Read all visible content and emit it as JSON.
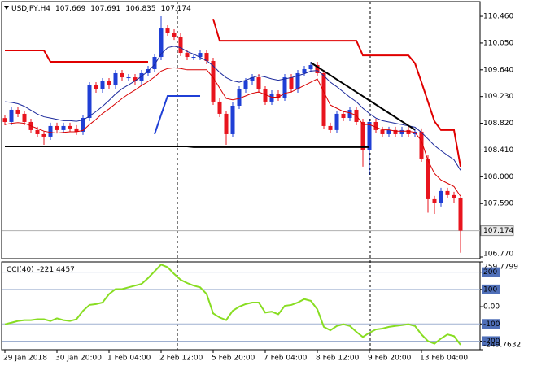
{
  "chart_data": [
    {
      "type": "candlestick",
      "title": "USDJPY,H4",
      "categories": [
        "29 Jan 2018",
        null,
        null,
        null,
        null,
        null,
        null,
        null,
        "30 Jan 20:00",
        null,
        null,
        null,
        null,
        null,
        null,
        null,
        "1 Feb 04:00",
        null,
        null,
        null,
        null,
        null,
        null,
        null,
        "2 Feb 12:00",
        null,
        null,
        null,
        null,
        null,
        null,
        null,
        "5 Feb 20:00",
        null,
        null,
        null,
        null,
        null,
        null,
        null,
        "7 Feb 04:00",
        null,
        null,
        null,
        null,
        null,
        null,
        null,
        "8 Feb 12:00",
        null,
        null,
        null,
        null,
        null,
        null,
        null,
        "9 Feb 20:00",
        null,
        null,
        null,
        null,
        null,
        null,
        null,
        "13 Feb 04:00",
        null,
        null,
        null,
        null,
        null,
        null
      ],
      "open": [
        108.9,
        108.84,
        109.027,
        108.965,
        108.84,
        108.716,
        108.653,
        108.616,
        108.778,
        108.716,
        108.778,
        108.741,
        108.691,
        108.902,
        109.401,
        109.339,
        109.463,
        109.401,
        109.588,
        109.525,
        109.525,
        109.463,
        109.588,
        109.65,
        109.837,
        110.273,
        110.211,
        110.148,
        109.899,
        109.837,
        109.837,
        109.899,
        109.775,
        109.152,
        108.965,
        108.653,
        109.089,
        109.339,
        109.463,
        109.525,
        109.339,
        109.152,
        109.276,
        109.214,
        109.525,
        109.339,
        109.588,
        109.65,
        109.712,
        109.588,
        108.778,
        108.716,
        108.965,
        108.902,
        109.027,
        108.84,
        108.404,
        108.84,
        108.716,
        108.653,
        108.716,
        108.653,
        108.716,
        108.653,
        108.691,
        108.279,
        107.656,
        107.594,
        107.781,
        107.719,
        107.669
      ],
      "high": [
        108.95,
        109.077,
        109.077,
        109.015,
        108.89,
        108.766,
        108.703,
        108.828,
        108.828,
        108.828,
        108.828,
        108.791,
        108.952,
        109.451,
        109.451,
        109.513,
        109.513,
        109.638,
        109.638,
        109.575,
        109.575,
        109.638,
        109.7,
        109.887,
        110.46,
        110.323,
        110.261,
        110.198,
        109.949,
        109.887,
        109.949,
        109.949,
        109.825,
        109.202,
        109.015,
        109.139,
        109.389,
        109.513,
        109.575,
        109.575,
        109.389,
        109.326,
        109.326,
        109.575,
        109.575,
        109.638,
        109.7,
        109.762,
        109.762,
        109.638,
        108.828,
        109.015,
        109.015,
        109.077,
        109.077,
        108.89,
        108.89,
        108.89,
        108.766,
        108.766,
        108.766,
        108.766,
        108.766,
        108.741,
        108.741,
        108.329,
        107.706,
        107.831,
        107.831,
        107.769,
        107.691
      ],
      "low": [
        108.79,
        108.79,
        108.915,
        108.79,
        108.666,
        108.603,
        108.49,
        108.566,
        108.666,
        108.666,
        108.691,
        108.641,
        108.641,
        108.852,
        109.289,
        109.289,
        109.351,
        109.351,
        109.475,
        109.475,
        109.413,
        109.413,
        109.538,
        109.6,
        109.787,
        110.161,
        110.098,
        109.849,
        109.787,
        109.787,
        109.787,
        109.725,
        109.102,
        108.915,
        108.49,
        108.603,
        109.039,
        109.289,
        109.413,
        109.289,
        109.102,
        109.102,
        109.164,
        109.164,
        109.289,
        109.289,
        109.538,
        109.6,
        109.538,
        108.728,
        108.666,
        108.666,
        108.852,
        108.852,
        108.79,
        108.155,
        108.03,
        108.666,
        108.603,
        108.603,
        108.603,
        108.603,
        108.603,
        108.603,
        108.229,
        107.45,
        107.43,
        107.544,
        107.669,
        107.606,
        106.835
      ],
      "close": [
        108.84,
        109.027,
        108.965,
        108.84,
        108.716,
        108.653,
        108.616,
        108.778,
        108.716,
        108.778,
        108.741,
        108.691,
        108.902,
        109.401,
        109.339,
        109.463,
        109.401,
        109.588,
        109.525,
        109.525,
        109.463,
        109.588,
        109.65,
        109.837,
        110.273,
        110.211,
        110.148,
        109.899,
        109.837,
        109.837,
        109.899,
        109.775,
        109.152,
        108.965,
        108.653,
        109.089,
        109.339,
        109.463,
        109.525,
        109.339,
        109.152,
        109.276,
        109.214,
        109.525,
        109.339,
        109.588,
        109.65,
        109.712,
        109.588,
        108.778,
        108.716,
        108.965,
        108.902,
        109.027,
        108.84,
        108.404,
        108.84,
        108.716,
        108.653,
        108.716,
        108.653,
        108.716,
        108.653,
        108.691,
        108.279,
        107.656,
        107.594,
        107.781,
        107.719,
        107.669,
        107.174
      ],
      "up_color": "#1f3fd6",
      "down_color": "#e8141e",
      "series": [
        {
          "color": "#1c2a9c",
          "values": [
            109.15,
            109.14,
            109.12,
            109.08,
            109.02,
            108.96,
            108.92,
            108.9,
            108.88,
            108.86,
            108.86,
            108.85,
            108.87,
            108.93,
            109.0,
            109.08,
            109.17,
            109.27,
            109.35,
            109.41,
            109.47,
            109.54,
            109.62,
            109.72,
            109.88,
            109.98,
            110.0,
            109.98,
            109.92,
            109.88,
            109.83,
            109.78,
            109.7,
            109.6,
            109.52,
            109.47,
            109.45,
            109.48,
            109.52,
            109.55,
            109.53,
            109.5,
            109.48,
            109.5,
            109.52,
            109.55,
            109.58,
            109.62,
            109.63,
            109.55,
            109.45,
            109.38,
            109.3,
            109.22,
            109.15,
            109.05,
            108.97,
            108.9,
            108.86,
            108.84,
            108.82,
            108.8,
            108.78,
            108.76,
            108.68,
            108.58,
            108.48,
            108.4,
            108.33,
            108.26,
            108.1
          ]
        },
        {
          "color": "#d80000",
          "values": [
            108.8,
            108.82,
            108.83,
            108.82,
            108.78,
            108.74,
            108.7,
            108.68,
            108.67,
            108.68,
            108.69,
            108.69,
            108.71,
            108.8,
            108.88,
            108.97,
            109.04,
            109.12,
            109.2,
            109.27,
            109.33,
            109.4,
            109.46,
            109.53,
            109.62,
            109.66,
            109.67,
            109.66,
            109.64,
            109.64,
            109.64,
            109.64,
            109.52,
            109.36,
            109.2,
            109.18,
            109.2,
            109.24,
            109.28,
            109.3,
            109.26,
            109.22,
            109.22,
            109.28,
            109.3,
            109.35,
            109.4,
            109.45,
            109.5,
            109.3,
            109.1,
            109.05,
            109.0,
            108.98,
            108.94,
            108.8,
            108.8,
            108.76,
            108.72,
            108.72,
            108.7,
            108.7,
            108.7,
            108.68,
            108.55,
            108.25,
            108.05,
            107.95,
            107.9,
            107.85,
            107.7
          ]
        },
        {
          "color": "#e00000",
          "width": 2,
          "values": [
            109.937,
            109.937,
            109.937,
            109.937,
            109.937,
            109.937,
            109.937,
            109.762,
            109.762,
            109.762,
            109.762,
            109.762,
            109.762,
            109.762,
            109.762,
            109.762,
            109.762,
            109.762,
            109.762,
            109.762,
            109.762,
            109.762,
            109.762,
            null,
            null,
            null,
            null,
            null,
            null,
            null,
            null,
            null,
            110.42,
            110.085,
            110.085,
            110.085,
            110.085,
            110.085,
            110.085,
            110.085,
            110.085,
            110.085,
            110.085,
            110.085,
            110.085,
            110.085,
            110.085,
            110.085,
            110.085,
            110.085,
            110.085,
            110.085,
            110.085,
            110.085,
            110.085,
            109.86,
            109.86,
            109.86,
            109.86,
            109.86,
            109.86,
            109.86,
            109.86,
            109.74,
            109.45,
            109.15,
            108.85,
            108.716,
            108.716,
            108.716,
            108.155
          ]
        },
        {
          "color": "#1f3fd6",
          "width": 2,
          "values": [
            null,
            null,
            null,
            null,
            null,
            null,
            null,
            null,
            null,
            null,
            null,
            null,
            null,
            null,
            null,
            null,
            null,
            null,
            null,
            null,
            null,
            null,
            null,
            108.653,
            108.95,
            109.239,
            109.239,
            109.239,
            109.239,
            109.239,
            109.239,
            null,
            null,
            null,
            null,
            null,
            null,
            null,
            null,
            null,
            null,
            null,
            null,
            null,
            null,
            null,
            null,
            null,
            null,
            null,
            null,
            null,
            null,
            null,
            null,
            null,
            null,
            null,
            null,
            null,
            null,
            null,
            null,
            null,
            null,
            null,
            null,
            null,
            null,
            null,
            null
          ]
        },
        {
          "color": "#000000",
          "width": 2,
          "values": [
            108.466,
            108.466,
            108.466,
            108.466,
            108.466,
            108.466,
            108.466,
            108.466,
            108.466,
            108.466,
            108.466,
            108.466,
            108.466,
            108.466,
            108.466,
            108.466,
            108.466,
            108.466,
            108.466,
            108.466,
            108.466,
            108.466,
            108.466,
            108.466,
            108.466,
            108.466,
            108.466,
            108.466,
            108.466,
            108.454,
            108.454,
            108.454,
            108.454,
            108.454,
            108.454,
            108.454,
            108.454,
            108.454,
            108.454,
            108.454,
            108.454,
            108.454,
            108.454,
            108.454,
            108.454,
            108.454,
            108.454,
            108.454,
            108.454,
            108.454,
            108.454,
            108.454,
            108.454,
            108.454,
            108.454,
            108.454,
            108.454,
            null,
            null,
            null,
            null,
            null,
            null,
            null,
            null,
            null,
            null,
            null,
            null,
            null,
            null
          ]
        },
        {
          "color": "#000000",
          "width": 2,
          "values": [
            null,
            null,
            null,
            null,
            null,
            null,
            null,
            null,
            null,
            null,
            null,
            null,
            null,
            null,
            null,
            null,
            null,
            null,
            null,
            null,
            null,
            null,
            null,
            null,
            null,
            null,
            null,
            null,
            null,
            null,
            null,
            null,
            null,
            null,
            null,
            null,
            null,
            null,
            null,
            null,
            null,
            null,
            null,
            null,
            null,
            null,
            null,
            109.75,
            109.686,
            109.621,
            109.557,
            109.492,
            109.428,
            109.364,
            109.299,
            109.235,
            109.17,
            109.106,
            109.041,
            108.977,
            108.913,
            108.848,
            108.784,
            108.72,
            null,
            null,
            null,
            null,
            null,
            null,
            null
          ]
        }
      ],
      "ylim": [
        106.745,
        110.685
      ],
      "yticks": [
        {
          "value": 110.46,
          "label": "110.460"
        },
        {
          "value": 110.05,
          "label": "110.050"
        },
        {
          "value": 109.64,
          "label": "109.640"
        },
        {
          "value": 109.23,
          "label": "109.230"
        },
        {
          "value": 108.82,
          "label": "108.820"
        },
        {
          "value": 108.41,
          "label": "108.410"
        },
        {
          "value": 108.0,
          "label": "108.000"
        },
        {
          "value": 107.59,
          "label": "107.590"
        },
        {
          "value": 106.77,
          "label": "106.770"
        }
      ]
    },
    {
      "type": "line",
      "title": "CCI(40)",
      "series": [
        {
          "color": "#88dd22",
          "width": 2,
          "values": [
            -102,
            -93,
            -83,
            -78,
            -78,
            -73,
            -73,
            -83,
            -68,
            -78,
            -83,
            -73,
            -24,
            10,
            15,
            24,
            73,
            102,
            102,
            112,
            122,
            132,
            166,
            205,
            244,
            229,
            190,
            156,
            137,
            122,
            112,
            73,
            -39,
            -63,
            -78,
            -24,
            0,
            15,
            24,
            24,
            -34,
            -29,
            -44,
            5,
            10,
            24,
            44,
            34,
            -15,
            -117,
            -137,
            -112,
            -102,
            -112,
            -146,
            -176,
            -151,
            -132,
            -127,
            -117,
            -112,
            -107,
            -102,
            -112,
            -161,
            -200,
            -215,
            -185,
            -161,
            -171,
            -221.4457
          ]
        }
      ],
      "ylim": [
        -249.7632,
        259.7799
      ],
      "yticks": [
        259.7799,
        200,
        100,
        {
          "value": 0,
          "label": "0.00"
        },
        -100,
        -200,
        -249.7632
      ],
      "levels": [
        200,
        100,
        -100,
        -200
      ]
    }
  ]
}
